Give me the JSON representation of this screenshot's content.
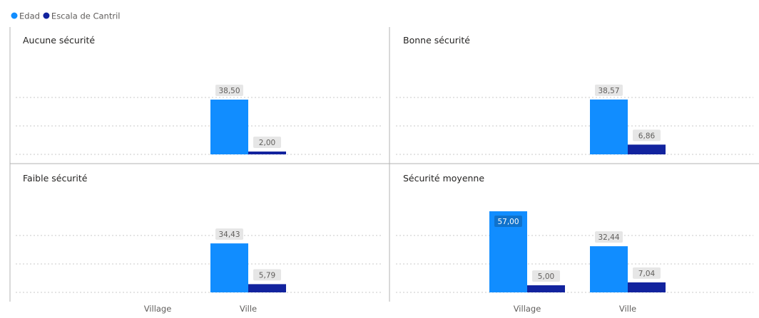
{
  "legend": [
    {
      "label": "Edad",
      "color": "#118DFF"
    },
    {
      "label": "Escala de Cantril",
      "color": "#12239E"
    }
  ],
  "colors": {
    "edad": "#118DFF",
    "cantril": "#12239E",
    "label_bg": "#E6E6E6",
    "label_text": "#605E5C",
    "gridline": "#C8C8C8",
    "divider": "#B3B3B3"
  },
  "x_categories": [
    "Village",
    "Ville"
  ],
  "chart_data": [
    {
      "type": "bar",
      "title": "Aucune sécurité",
      "categories": [
        "Village",
        "Ville"
      ],
      "series": [
        {
          "name": "Edad",
          "values": [
            null,
            38.5
          ],
          "labels": [
            "",
            "38,50"
          ]
        },
        {
          "name": "Escala de Cantril",
          "values": [
            null,
            2.0
          ],
          "labels": [
            "",
            "2,00"
          ]
        }
      ],
      "ylim": [
        0,
        60
      ]
    },
    {
      "type": "bar",
      "title": "Bonne sécurité",
      "categories": [
        "Village",
        "Ville"
      ],
      "series": [
        {
          "name": "Edad",
          "values": [
            null,
            38.57
          ],
          "labels": [
            "",
            "38,57"
          ]
        },
        {
          "name": "Escala de Cantril",
          "values": [
            null,
            6.86
          ],
          "labels": [
            "",
            "6,86"
          ]
        }
      ],
      "ylim": [
        0,
        60
      ]
    },
    {
      "type": "bar",
      "title": "Faible sécurité",
      "categories": [
        "Village",
        "Ville"
      ],
      "series": [
        {
          "name": "Edad",
          "values": [
            null,
            34.43
          ],
          "labels": [
            "",
            "34,43"
          ]
        },
        {
          "name": "Escala de Cantril",
          "values": [
            null,
            5.79
          ],
          "labels": [
            "",
            "5,79"
          ]
        }
      ],
      "ylim": [
        0,
        60
      ]
    },
    {
      "type": "bar",
      "title": "Sécurité moyenne",
      "categories": [
        "Village",
        "Ville"
      ],
      "series": [
        {
          "name": "Edad",
          "values": [
            57.0,
            32.44
          ],
          "labels": [
            "57,00",
            "32,44"
          ]
        },
        {
          "name": "Escala de Cantril",
          "values": [
            5.0,
            7.04
          ],
          "labels": [
            "5,00",
            "7,04"
          ]
        }
      ],
      "ylim": [
        0,
        60
      ]
    }
  ]
}
